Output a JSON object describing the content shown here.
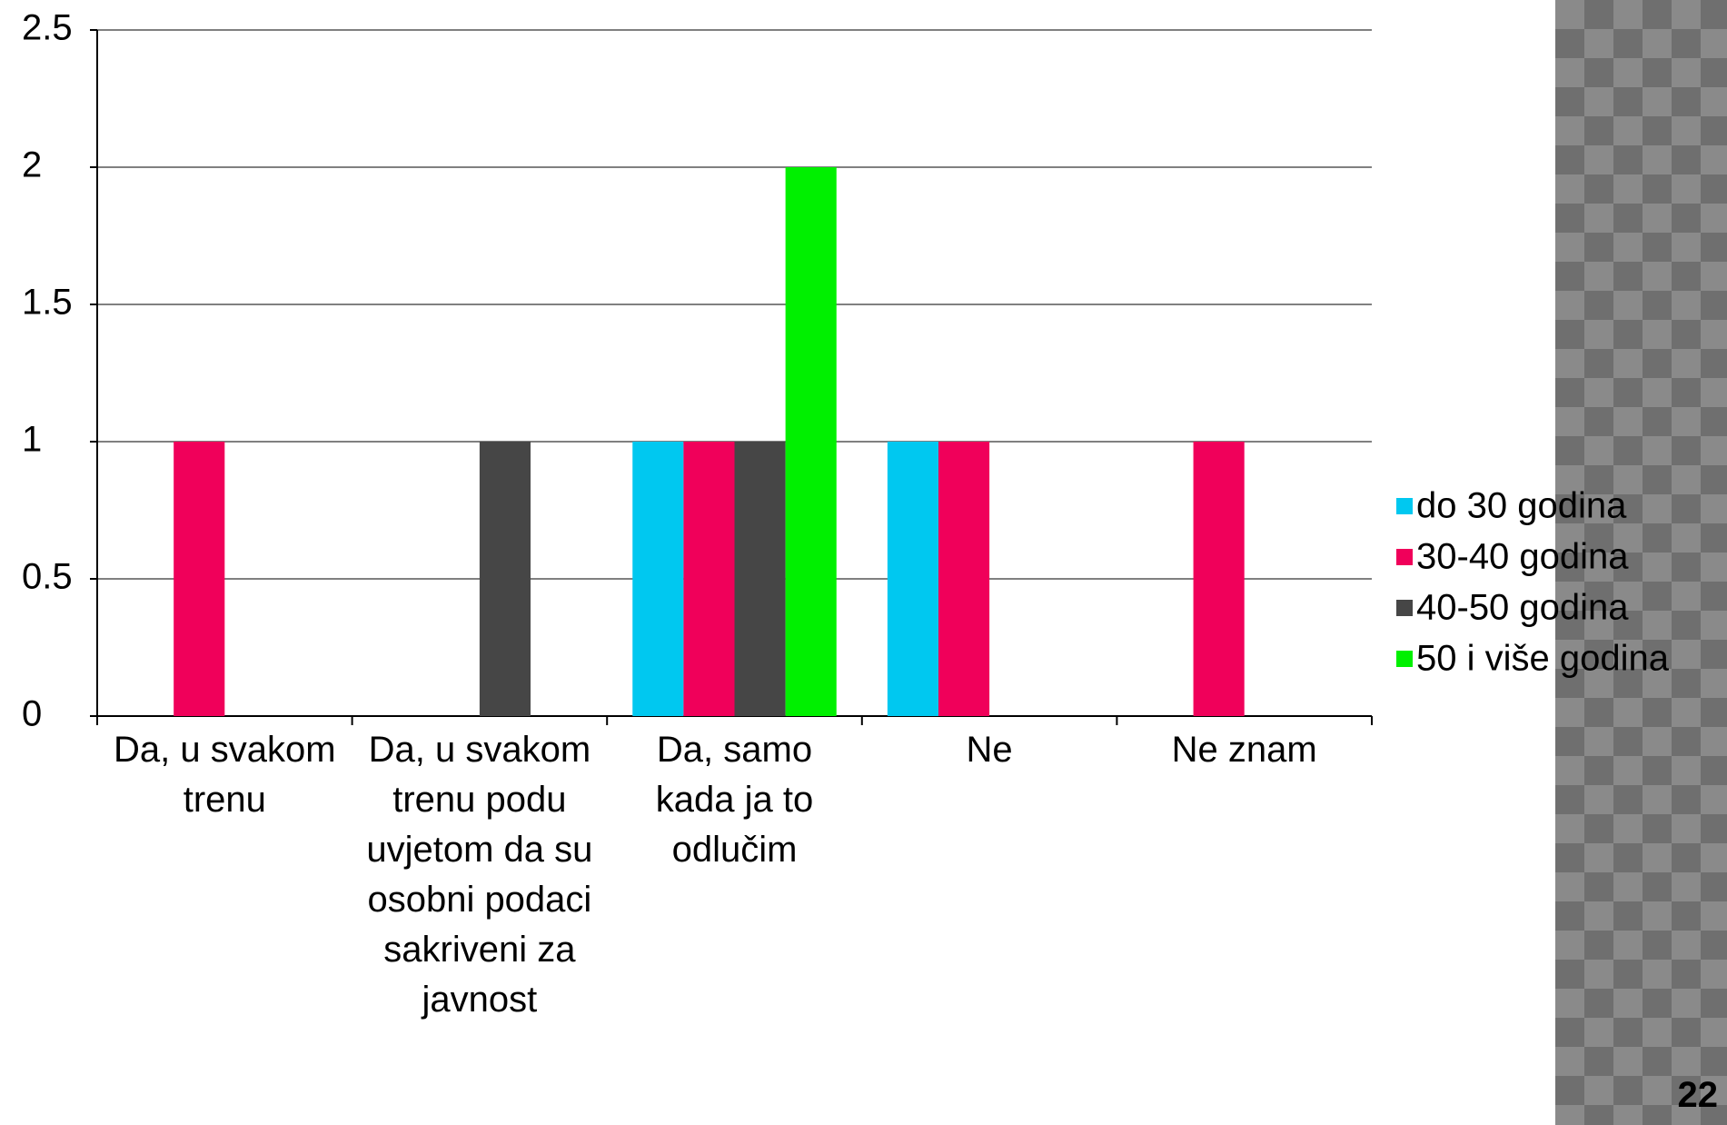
{
  "chart_data": {
    "type": "bar",
    "categories": [
      "Da, u svakom trenu",
      "Da, u svakom trenu podu uvjetom da su osobni podaci sakriveni za javnost",
      "Da, samo kada ja to odlučim",
      "Ne",
      "Ne znam"
    ],
    "series": [
      {
        "name": "do 30 godina",
        "color": "#00c8f0",
        "values": [
          0,
          0,
          1,
          1,
          0
        ]
      },
      {
        "name": "30-40 godina",
        "color": "#f0005a",
        "values": [
          1,
          0,
          1,
          1,
          1
        ]
      },
      {
        "name": "40-50 godina",
        "color": "#464646",
        "values": [
          0,
          1,
          1,
          0,
          0
        ]
      },
      {
        "name": "50 i više godina",
        "color": "#00f000",
        "values": [
          0,
          0,
          2,
          0,
          0
        ]
      }
    ],
    "ylim": [
      0,
      2.5
    ],
    "yticks": [
      0,
      0.5,
      1,
      1.5,
      2,
      2.5
    ],
    "grid": true,
    "legend": "right"
  },
  "page_number": "22"
}
